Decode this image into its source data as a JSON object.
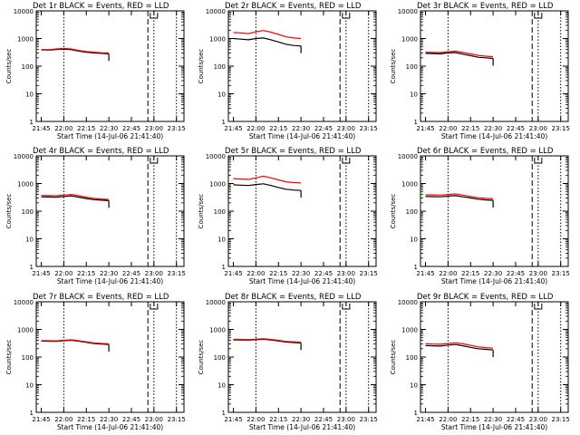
{
  "colors": {
    "events": "#000000",
    "lld": "#ff0000",
    "background": "#ffffff",
    "axes": "#000000"
  },
  "chart_data": [
    {
      "type": "line",
      "title": "Det 1r BLACK = Events, RED = LLD",
      "xlabel": "Start Time (14-Jul-06 21:41:40)",
      "ylabel": "Counts/sec",
      "yscale": "log",
      "ylim": [
        1,
        10000
      ],
      "xlim": [
        "21:41:40",
        "23:20:00"
      ],
      "xticks": [
        "21:45",
        "22:00",
        "22:15",
        "22:30",
        "22:45",
        "23:00",
        "23:15"
      ],
      "yticks": [
        "1",
        "10",
        "100",
        "1000",
        "10000"
      ],
      "marker_dotted": [
        "22:00",
        "23:00",
        "23:15"
      ],
      "marker_dashed": [
        "22:56"
      ],
      "series": [
        {
          "name": "Events",
          "color": "#000000",
          "x": [
            "21:45",
            "21:50",
            "21:55",
            "22:00",
            "22:05",
            "22:10",
            "22:15",
            "22:20",
            "22:25",
            "22:30"
          ],
          "y": [
            390,
            380,
            400,
            410,
            395,
            350,
            320,
            300,
            290,
            280
          ]
        },
        {
          "name": "LLD",
          "color": "#ff0000",
          "x": [
            "21:45",
            "21:50",
            "21:55",
            "22:00",
            "22:05",
            "22:10",
            "22:15",
            "22:20",
            "22:25",
            "22:30"
          ],
          "y": [
            400,
            395,
            420,
            435,
            420,
            370,
            340,
            320,
            305,
            300
          ]
        }
      ]
    },
    {
      "type": "line",
      "title": "Det 2r BLACK = Events, RED = LLD",
      "xlabel": "Start Time (14-Jul-06 21:41:40)",
      "ylabel": "Counts/sec",
      "yscale": "log",
      "ylim": [
        1,
        10000
      ],
      "xlim": [
        "21:41:40",
        "23:20:00"
      ],
      "xticks": [
        "21:45",
        "22:00",
        "22:15",
        "22:30",
        "22:45",
        "23:00",
        "23:15"
      ],
      "yticks": [
        "1",
        "10",
        "100",
        "1000",
        "10000"
      ],
      "marker_dotted": [
        "22:00",
        "23:00",
        "23:15"
      ],
      "marker_dashed": [
        "22:56"
      ],
      "series": [
        {
          "name": "Events",
          "color": "#000000",
          "x": [
            "21:45",
            "21:50",
            "21:55",
            "22:00",
            "22:05",
            "22:10",
            "22:15",
            "22:20",
            "22:25",
            "22:30"
          ],
          "y": [
            1000,
            950,
            900,
            1000,
            1050,
            900,
            750,
            620,
            560,
            540
          ]
        },
        {
          "name": "LLD",
          "color": "#ff0000",
          "x": [
            "21:45",
            "21:50",
            "21:55",
            "22:00",
            "22:05",
            "22:10",
            "22:15",
            "22:20",
            "22:25",
            "22:30"
          ],
          "y": [
            1650,
            1600,
            1500,
            1750,
            1950,
            1700,
            1400,
            1150,
            1050,
            1000
          ]
        }
      ]
    },
    {
      "type": "line",
      "title": "Det 3r BLACK = Events, RED = LLD",
      "xlabel": "Start Time (14-Jul-06 21:41:40)",
      "ylabel": "Counts/sec",
      "yscale": "log",
      "ylim": [
        1,
        10000
      ],
      "xlim": [
        "21:41:40",
        "23:20:00"
      ],
      "xticks": [
        "21:45",
        "22:00",
        "22:15",
        "22:30",
        "22:45",
        "23:00",
        "23:15"
      ],
      "yticks": [
        "1",
        "10",
        "100",
        "1000",
        "10000"
      ],
      "marker_dotted": [
        "22:00",
        "23:00",
        "23:15"
      ],
      "marker_dashed": [
        "22:56"
      ],
      "series": [
        {
          "name": "Events",
          "color": "#000000",
          "x": [
            "21:45",
            "21:50",
            "21:55",
            "22:00",
            "22:05",
            "22:10",
            "22:15",
            "22:20",
            "22:25",
            "22:30"
          ],
          "y": [
            290,
            285,
            280,
            300,
            310,
            270,
            240,
            210,
            200,
            190
          ]
        },
        {
          "name": "LLD",
          "color": "#ff0000",
          "x": [
            "21:45",
            "21:50",
            "21:55",
            "22:00",
            "22:05",
            "22:10",
            "22:15",
            "22:20",
            "22:25",
            "22:30"
          ],
          "y": [
            320,
            315,
            310,
            330,
            350,
            310,
            280,
            245,
            230,
            220
          ]
        }
      ]
    },
    {
      "type": "line",
      "title": "Det 4r BLACK = Events, RED = LLD",
      "xlabel": "Start Time (14-Jul-06 21:41:40)",
      "ylabel": "Counts/sec",
      "yscale": "log",
      "ylim": [
        1,
        10000
      ],
      "xlim": [
        "21:41:40",
        "23:20:00"
      ],
      "xticks": [
        "21:45",
        "22:00",
        "22:15",
        "22:30",
        "22:45",
        "23:00",
        "23:15"
      ],
      "yticks": [
        "1",
        "10",
        "100",
        "1000",
        "10000"
      ],
      "marker_dotted": [
        "22:00",
        "23:00",
        "23:15"
      ],
      "marker_dashed": [
        "22:56"
      ],
      "series": [
        {
          "name": "Events",
          "color": "#000000",
          "x": [
            "21:45",
            "21:50",
            "21:55",
            "22:00",
            "22:05",
            "22:10",
            "22:15",
            "22:20",
            "22:25",
            "22:30"
          ],
          "y": [
            330,
            325,
            320,
            340,
            355,
            320,
            285,
            260,
            250,
            240
          ]
        },
        {
          "name": "LLD",
          "color": "#ff0000",
          "x": [
            "21:45",
            "21:50",
            "21:55",
            "22:00",
            "22:05",
            "22:10",
            "22:15",
            "22:20",
            "22:25",
            "22:30"
          ],
          "y": [
            370,
            365,
            360,
            380,
            400,
            360,
            320,
            290,
            275,
            265
          ]
        }
      ]
    },
    {
      "type": "line",
      "title": "Det 5r BLACK = Events, RED = LLD",
      "xlabel": "Start Time (14-Jul-06 21:41:40)",
      "ylabel": "Counts/sec",
      "yscale": "log",
      "ylim": [
        1,
        10000
      ],
      "xlim": [
        "21:41:40",
        "23:20:00"
      ],
      "xticks": [
        "21:45",
        "22:00",
        "22:15",
        "22:30",
        "22:45",
        "23:00",
        "23:15"
      ],
      "yticks": [
        "1",
        "10",
        "100",
        "1000",
        "10000"
      ],
      "marker_dotted": [
        "22:00",
        "23:00",
        "23:15"
      ],
      "marker_dashed": [
        "22:56"
      ],
      "series": [
        {
          "name": "Events",
          "color": "#000000",
          "x": [
            "21:45",
            "21:50",
            "21:55",
            "22:00",
            "22:05",
            "22:10",
            "22:15",
            "22:20",
            "22:25",
            "22:30"
          ],
          "y": [
            900,
            870,
            850,
            920,
            980,
            850,
            720,
            620,
            580,
            560
          ]
        },
        {
          "name": "LLD",
          "color": "#ff0000",
          "x": [
            "21:45",
            "21:50",
            "21:55",
            "22:00",
            "22:05",
            "22:10",
            "22:15",
            "22:20",
            "22:25",
            "22:30"
          ],
          "y": [
            1500,
            1450,
            1400,
            1600,
            1850,
            1600,
            1350,
            1150,
            1080,
            1050
          ]
        }
      ]
    },
    {
      "type": "line",
      "title": "Det 6r BLACK = Events, RED = LLD",
      "xlabel": "Start Time (14-Jul-06 21:41:40)",
      "ylabel": "Counts/sec",
      "yscale": "log",
      "ylim": [
        1,
        10000
      ],
      "xlim": [
        "21:41:40",
        "23:20:00"
      ],
      "xticks": [
        "21:45",
        "22:00",
        "22:15",
        "22:30",
        "22:45",
        "23:00",
        "23:15"
      ],
      "yticks": [
        "1",
        "10",
        "100",
        "1000",
        "10000"
      ],
      "marker_dotted": [
        "22:00",
        "23:00",
        "23:15"
      ],
      "marker_dashed": [
        "22:56"
      ],
      "series": [
        {
          "name": "Events",
          "color": "#000000",
          "x": [
            "21:45",
            "21:50",
            "21:55",
            "22:00",
            "22:05",
            "22:10",
            "22:15",
            "22:20",
            "22:25",
            "22:30"
          ],
          "y": [
            340,
            335,
            330,
            350,
            365,
            330,
            300,
            270,
            255,
            245
          ]
        },
        {
          "name": "LLD",
          "color": "#ff0000",
          "x": [
            "21:45",
            "21:50",
            "21:55",
            "22:00",
            "22:05",
            "22:10",
            "22:15",
            "22:20",
            "22:25",
            "22:30"
          ],
          "y": [
            390,
            385,
            380,
            400,
            420,
            380,
            340,
            305,
            290,
            280
          ]
        }
      ]
    },
    {
      "type": "line",
      "title": "Det 7r BLACK = Events, RED = LLD",
      "xlabel": "Start Time (14-Jul-06 21:41:40)",
      "ylabel": "Counts/sec",
      "yscale": "log",
      "ylim": [
        1,
        10000
      ],
      "xlim": [
        "21:41:40",
        "23:20:00"
      ],
      "xticks": [
        "21:45",
        "22:00",
        "22:15",
        "22:30",
        "22:45",
        "23:00",
        "23:15"
      ],
      "yticks": [
        "1",
        "10",
        "100",
        "1000",
        "10000"
      ],
      "marker_dotted": [
        "22:00",
        "23:00",
        "23:15"
      ],
      "marker_dashed": [
        "22:56"
      ],
      "series": [
        {
          "name": "Events",
          "color": "#000000",
          "x": [
            "21:45",
            "21:50",
            "21:55",
            "22:00",
            "22:05",
            "22:10",
            "22:15",
            "22:20",
            "22:25",
            "22:30"
          ],
          "y": [
            380,
            375,
            370,
            390,
            405,
            375,
            340,
            310,
            295,
            285
          ]
        },
        {
          "name": "LLD",
          "color": "#ff0000",
          "x": [
            "21:45",
            "21:50",
            "21:55",
            "22:00",
            "22:05",
            "22:10",
            "22:15",
            "22:20",
            "22:25",
            "22:30"
          ],
          "y": [
            395,
            390,
            385,
            405,
            420,
            390,
            355,
            325,
            310,
            300
          ]
        }
      ]
    },
    {
      "type": "line",
      "title": "Det 8r BLACK = Events, RED = LLD",
      "xlabel": "Start Time (14-Jul-06 21:41:40)",
      "ylabel": "Counts/sec",
      "yscale": "log",
      "ylim": [
        1,
        10000
      ],
      "xlim": [
        "21:41:40",
        "23:20:00"
      ],
      "xticks": [
        "21:45",
        "22:00",
        "22:15",
        "22:30",
        "22:45",
        "23:00",
        "23:15"
      ],
      "yticks": [
        "1",
        "10",
        "100",
        "1000",
        "10000"
      ],
      "marker_dotted": [
        "22:00",
        "23:00",
        "23:15"
      ],
      "marker_dashed": [
        "22:56"
      ],
      "series": [
        {
          "name": "Events",
          "color": "#000000",
          "x": [
            "21:45",
            "21:50",
            "21:55",
            "22:00",
            "22:05",
            "22:10",
            "22:15",
            "22:20",
            "22:25",
            "22:30"
          ],
          "y": [
            420,
            415,
            410,
            425,
            440,
            415,
            380,
            350,
            335,
            325
          ]
        },
        {
          "name": "LLD",
          "color": "#ff0000",
          "x": [
            "21:45",
            "21:50",
            "21:55",
            "22:00",
            "22:05",
            "22:10",
            "22:15",
            "22:20",
            "22:25",
            "22:30"
          ],
          "y": [
            440,
            435,
            430,
            445,
            460,
            435,
            400,
            370,
            355,
            345
          ]
        }
      ]
    },
    {
      "type": "line",
      "title": "Det 9r BLACK = Events, RED = LLD",
      "xlabel": "Start Time (14-Jul-06 21:41:40)",
      "ylabel": "Counts/sec",
      "yscale": "log",
      "ylim": [
        1,
        10000
      ],
      "xlim": [
        "21:41:40",
        "23:20:00"
      ],
      "xticks": [
        "21:45",
        "22:00",
        "22:15",
        "22:30",
        "22:45",
        "23:00",
        "23:15"
      ],
      "yticks": [
        "1",
        "10",
        "100",
        "1000",
        "10000"
      ],
      "marker_dotted": [
        "22:00",
        "23:00",
        "23:15"
      ],
      "marker_dashed": [
        "22:56"
      ],
      "series": [
        {
          "name": "Events",
          "color": "#000000",
          "x": [
            "21:45",
            "21:50",
            "21:55",
            "22:00",
            "22:05",
            "22:10",
            "22:15",
            "22:20",
            "22:25",
            "22:30"
          ],
          "y": [
            260,
            255,
            250,
            270,
            285,
            255,
            225,
            200,
            190,
            180
          ]
        },
        {
          "name": "LLD",
          "color": "#ff0000",
          "x": [
            "21:45",
            "21:50",
            "21:55",
            "22:00",
            "22:05",
            "22:10",
            "22:15",
            "22:20",
            "22:25",
            "22:30"
          ],
          "y": [
            300,
            295,
            290,
            310,
            330,
            300,
            265,
            235,
            220,
            210
          ]
        }
      ]
    }
  ]
}
